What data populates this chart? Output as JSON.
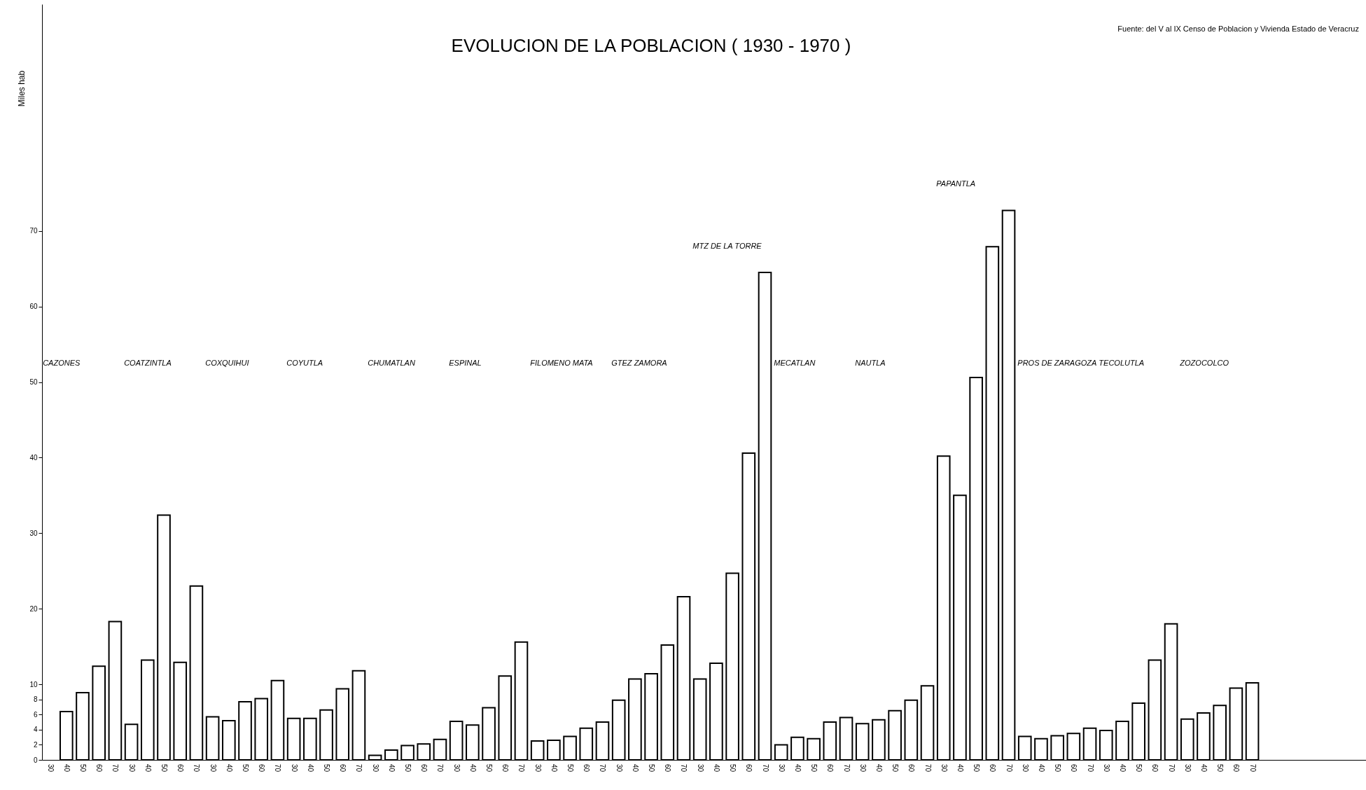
{
  "chart_data": {
    "type": "bar",
    "title": "EVOLUCION DE LA POBLACION ( 1930 - 1970 )",
    "ylabel": "Miles hab",
    "categories": [
      "30",
      "40",
      "50",
      "60",
      "70",
      "30",
      "40",
      "50",
      "60",
      "70",
      "30",
      "40",
      "50",
      "60",
      "70",
      "30",
      "40",
      "50",
      "60",
      "70",
      "30",
      "40",
      "50",
      "60",
      "70",
      "30",
      "40",
      "50",
      "60",
      "70",
      "30",
      "40",
      "50",
      "60",
      "70",
      "30",
      "40",
      "50",
      "60",
      "70",
      "30",
      "40",
      "50",
      "60",
      "70",
      "30",
      "40",
      "50",
      "60",
      "70",
      "30",
      "40",
      "50",
      "60",
      "70",
      "30",
      "40",
      "50",
      "60",
      "70",
      "30",
      "40",
      "50",
      "60",
      "70",
      "30",
      "40",
      "50",
      "60",
      "70",
      "30",
      "40",
      "50",
      "60",
      "70"
    ],
    "series": [
      {
        "color": "#000000",
        "values": [
          null,
          6.4,
          8.9,
          12.4,
          18.3,
          4.7,
          13.2,
          32.4,
          12.9,
          23.0,
          5.7,
          5.2,
          7.7,
          8.1,
          10.5,
          5.5,
          5.5,
          6.6,
          9.4,
          11.8,
          0.6,
          1.3,
          1.9,
          2.1,
          2.7,
          5.1,
          4.6,
          6.9,
          11.1,
          15.6,
          2.5,
          2.6,
          3.1,
          4.2,
          5.0,
          7.9,
          10.7,
          11.4,
          15.2,
          21.6,
          10.7,
          12.8,
          24.7,
          40.6,
          64.5,
          2.0,
          3.0,
          2.8,
          5.0,
          5.6,
          4.8,
          5.3,
          6.5,
          7.9,
          9.8,
          40.2,
          35.0,
          50.6,
          67.9,
          72.7,
          3.1,
          2.8,
          3.2,
          3.5,
          4.2,
          3.9,
          5.1,
          7.5,
          13.2,
          18.0,
          5.4,
          6.2,
          7.2,
          9.5,
          10.2
        ]
      }
    ],
    "ylim": [
      0,
      100
    ],
    "yticks": [
      0,
      2,
      4,
      6,
      8,
      10,
      20,
      30,
      40,
      50,
      60,
      70
    ],
    "grid": false,
    "annotations": [
      "Fuente: del V al IX Censo de Poblacion y Vivienda Estado de Veracruz",
      "CAZONES",
      "COATZINTLA",
      "COXQUIHUI",
      "COYUTLA",
      "CHUMATLAN",
      "ESPINAL",
      "FILOMENO MATA",
      "GTEZ ZAMORA",
      "MTZ DE LA TORRE",
      "MECATLAN",
      "NAUTLA",
      "PAPANTLA",
      "PROS DE ZARAGOZA",
      "TECOLUTLA",
      "ZOZOCOLCO"
    ]
  }
}
